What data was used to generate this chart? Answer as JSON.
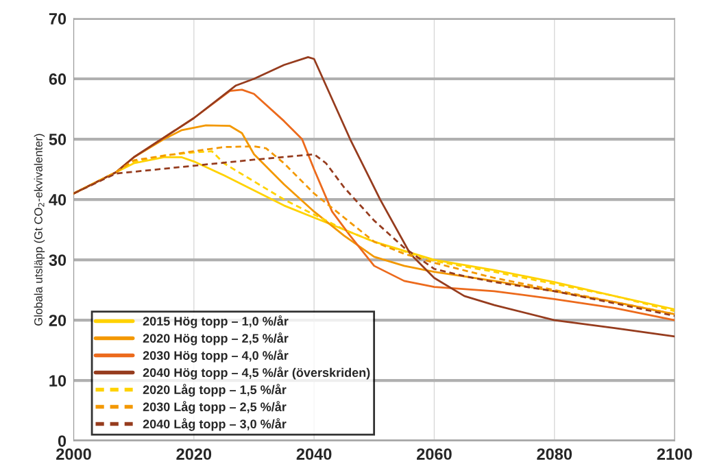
{
  "chart_data": {
    "type": "line",
    "ylabel": "Globala utsläpp (Gt CO$_{2}$-ekvivalenter)",
    "xlim": [
      2000,
      2100
    ],
    "ylim": [
      0,
      70
    ],
    "xticks": [
      2000,
      2020,
      2040,
      2060,
      2080,
      2100
    ],
    "yticks": [
      0,
      10,
      20,
      30,
      40,
      50,
      60,
      70
    ],
    "grid": true,
    "legend": "bottom left",
    "marker": "none",
    "series": [
      {
        "name": "2015 Hög topp – 1,0 %/år",
        "color": "#ffd200",
        "line_style": "solid",
        "x": [
          2000,
          2007,
          2010,
          2015,
          2018,
          2020,
          2025,
          2030,
          2035,
          2040,
          2045,
          2050,
          2055,
          2060,
          2070,
          2080,
          2090,
          2100
        ],
        "values": [
          41,
          44.5,
          46,
          47,
          47,
          46.3,
          44,
          41.5,
          39,
          37,
          35,
          33,
          31.5,
          30,
          28.3,
          26.3,
          24,
          21.8
        ]
      },
      {
        "name": "2020 Hög topp – 2,5 %/år",
        "color": "#f39800",
        "line_style": "solid",
        "x": [
          2000,
          2007,
          2010,
          2015,
          2018,
          2022,
          2026,
          2028,
          2030,
          2035,
          2040,
          2045,
          2050,
          2055,
          2060,
          2070,
          2080,
          2090,
          2100
        ],
        "values": [
          41,
          44.5,
          47,
          50,
          51.5,
          52.3,
          52.2,
          51,
          47.5,
          42.5,
          38,
          34,
          30.5,
          29,
          28,
          26.5,
          24.8,
          23,
          21
        ]
      },
      {
        "name": "2030 Hög topp – 4,0 %/år",
        "color": "#ec6a1c",
        "line_style": "solid",
        "x": [
          2000,
          2007,
          2010,
          2020,
          2026,
          2028,
          2030,
          2035,
          2038,
          2040,
          2043,
          2046,
          2050,
          2055,
          2060,
          2070,
          2080,
          2090,
          2100
        ],
        "values": [
          41,
          44.5,
          47,
          53.5,
          58,
          58.2,
          57.5,
          53,
          50,
          45,
          38,
          34,
          29,
          26.5,
          25.5,
          24.8,
          23.5,
          22,
          20
        ]
      },
      {
        "name": "2040 Hög topp – 4,5 %/år (överskriden)",
        "color": "#963c1e",
        "line_style": "solid",
        "x": [
          2000,
          2007,
          2010,
          2020,
          2027,
          2030,
          2035,
          2039,
          2040,
          2046,
          2051,
          2056,
          2060,
          2065,
          2070,
          2080,
          2090,
          2100
        ],
        "values": [
          41,
          44.5,
          47,
          53.5,
          58.9,
          60,
          62.3,
          63.6,
          63.3,
          50,
          40,
          31,
          27,
          24,
          22.5,
          20,
          18.7,
          17.3
        ]
      },
      {
        "name": "2020 Låg topp – 1,5 %/år",
        "color": "#ffd200",
        "line_style": "dashed",
        "x": [
          2000,
          2007,
          2010,
          2015,
          2020,
          2023,
          2025,
          2030,
          2035,
          2040,
          2045,
          2050,
          2060,
          2070,
          2080,
          2090,
          2100
        ],
        "values": [
          41,
          44.5,
          46.2,
          47.3,
          47.8,
          48,
          46,
          43,
          40,
          37.5,
          35,
          33,
          29.8,
          28,
          26,
          24,
          21.5
        ]
      },
      {
        "name": "2030 Låg topp – 2,5 %/år",
        "color": "#f39800",
        "line_style": "dashed",
        "x": [
          2000,
          2007,
          2010,
          2020,
          2025,
          2030,
          2032,
          2035,
          2040,
          2045,
          2050,
          2055,
          2060,
          2070,
          2080,
          2090,
          2100
        ],
        "values": [
          41,
          44.5,
          46.5,
          48,
          48.7,
          48.8,
          48.5,
          46,
          41,
          37,
          33,
          31,
          29.5,
          27,
          25,
          23,
          21
        ]
      },
      {
        "name": "2040 Låg topp – 3,0 %/år",
        "color": "#963c1e",
        "line_style": "dashed",
        "x": [
          2000,
          2007,
          2020,
          2030,
          2040,
          2042,
          2045,
          2050,
          2055,
          2060,
          2065,
          2070,
          2080,
          2090,
          2100
        ],
        "values": [
          41,
          44.3,
          45.6,
          46.6,
          47.5,
          46,
          42,
          36.5,
          32,
          28.5,
          27.3,
          26.3,
          24.8,
          22.8,
          20.7
        ]
      }
    ]
  }
}
